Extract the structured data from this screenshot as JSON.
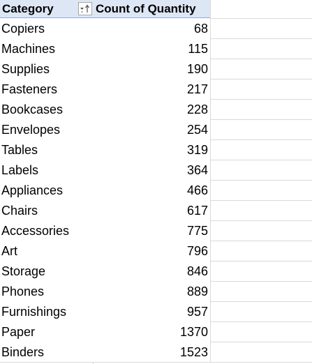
{
  "pivot": {
    "header": {
      "category_label": "Category",
      "count_label": "Count of Quantity",
      "filter_icon": "filter-sort-ascending-icon"
    },
    "rows": [
      {
        "category": "Copiers",
        "count": "68"
      },
      {
        "category": "Machines",
        "count": "115"
      },
      {
        "category": "Supplies",
        "count": "190"
      },
      {
        "category": "Fasteners",
        "count": "217"
      },
      {
        "category": "Bookcases",
        "count": "228"
      },
      {
        "category": "Envelopes",
        "count": "254"
      },
      {
        "category": "Tables",
        "count": "319"
      },
      {
        "category": "Labels",
        "count": "364"
      },
      {
        "category": "Appliances",
        "count": "466"
      },
      {
        "category": "Chairs",
        "count": "617"
      },
      {
        "category": "Accessories",
        "count": "775"
      },
      {
        "category": "Art",
        "count": "796"
      },
      {
        "category": "Storage",
        "count": "846"
      },
      {
        "category": "Phones",
        "count": "889"
      },
      {
        "category": "Furnishings",
        "count": "957"
      },
      {
        "category": "Paper",
        "count": "1370"
      },
      {
        "category": "Binders",
        "count": "1523"
      }
    ]
  },
  "colors": {
    "header_fill": "#dde6f4",
    "header_border": "#8ea9db",
    "gridline": "#d9d9d9"
  }
}
